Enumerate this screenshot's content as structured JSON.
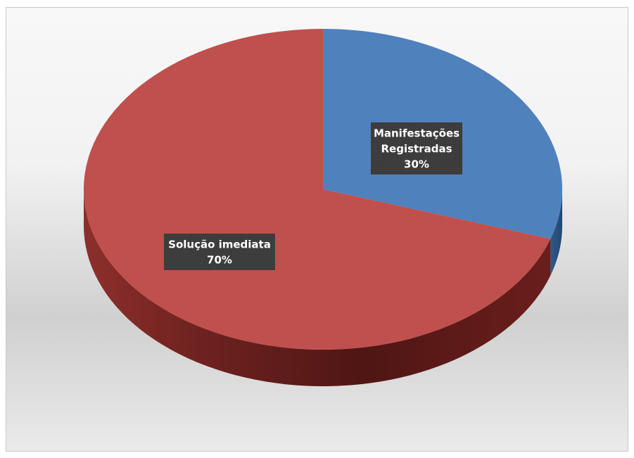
{
  "chart_data": {
    "type": "pie",
    "style": "3d",
    "title": "",
    "slices": [
      {
        "label_lines": [
          "Manifestações",
          "Registradas"
        ],
        "percent_label": "30%",
        "value": 30,
        "color": "#4f81bd"
      },
      {
        "label_lines": [
          "Solução imediata"
        ],
        "percent_label": "70%",
        "value": 70,
        "color": "#c0504d"
      }
    ],
    "data_label_style": "dark box, white bold text",
    "legend": "none"
  }
}
